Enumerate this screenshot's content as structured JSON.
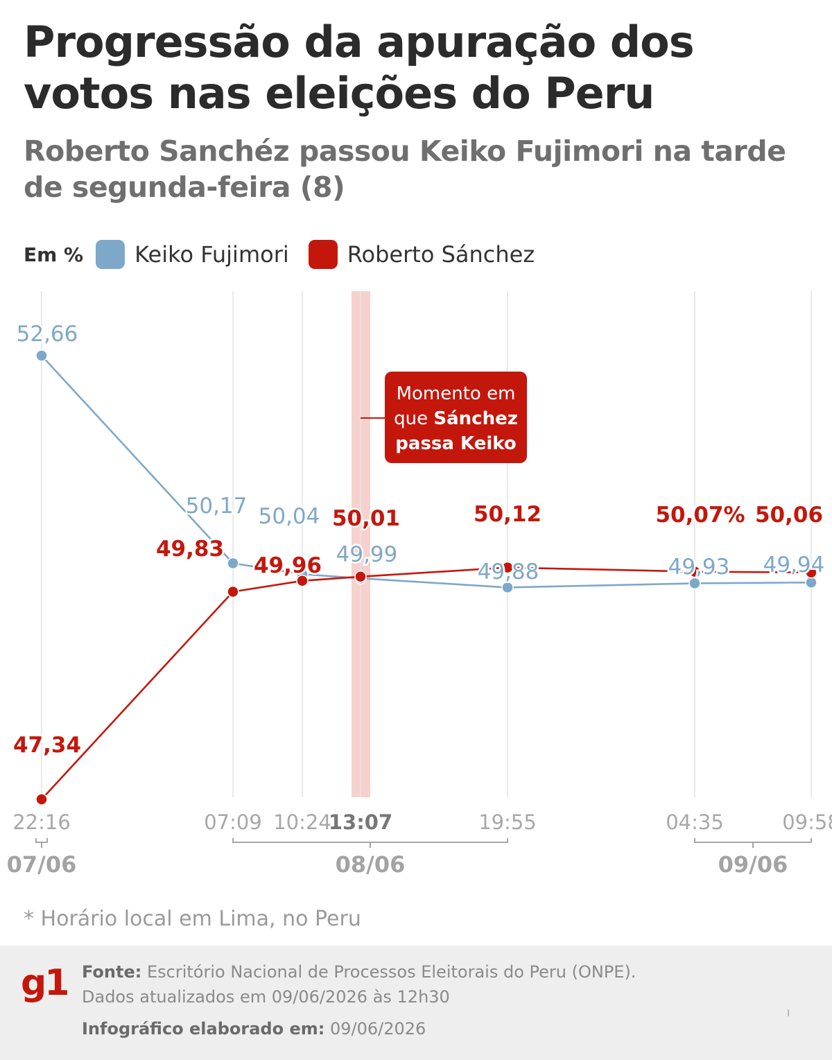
{
  "header": {
    "title": "Progressão da apuração dos votos nas eleições do Peru",
    "subtitle": "Roberto Sanchéz passou Keiko Fujimori na tarde de segunda-feira (8)"
  },
  "legend": {
    "unit": "Em %",
    "items": [
      {
        "label": "Keiko Fujimori",
        "color": "#7ea8c9"
      },
      {
        "label": "Roberto Sánchez",
        "color": "#c4170c"
      }
    ]
  },
  "chart_data": {
    "type": "line",
    "ylim": [
      47,
      53
    ],
    "x_ticks": [
      "22:16",
      "07:09",
      "10:24",
      "13:07",
      "19:55",
      "04:35",
      "09:58"
    ],
    "x_ticks_highlight": "13:07",
    "date_groups": [
      {
        "label": "07/06",
        "from": "22:16",
        "to": "22:16"
      },
      {
        "label": "08/06",
        "from": "07:09",
        "to": "19:55"
      },
      {
        "label": "09/06",
        "from": "04:35",
        "to": "09:58"
      }
    ],
    "series": [
      {
        "name": "Keiko Fujimori",
        "color": "#7ea8c9",
        "points": [
          {
            "x": "22:16",
            "y": 52.66,
            "label": "52,66"
          },
          {
            "x": "07:09",
            "y": 50.17,
            "label": "50,17"
          },
          {
            "x": "10:24",
            "y": 50.04,
            "label": "50,04"
          },
          {
            "x": "13:07",
            "y": 49.99,
            "label": "49,99"
          },
          {
            "x": "19:55",
            "y": 49.88,
            "label": "49,88"
          },
          {
            "x": "04:35",
            "y": 49.93,
            "label": "49,93"
          },
          {
            "x": "09:58",
            "y": 49.94,
            "label": "49,94"
          }
        ]
      },
      {
        "name": "Roberto Sánchez",
        "color": "#c4170c",
        "points": [
          {
            "x": "22:16",
            "y": 47.34,
            "label": "47,34"
          },
          {
            "x": "07:09",
            "y": 49.83,
            "label": "49,83"
          },
          {
            "x": "10:24",
            "y": 49.96,
            "label": "49,96"
          },
          {
            "x": "13:07",
            "y": 50.01,
            "label": "50,01"
          },
          {
            "x": "19:55",
            "y": 50.12,
            "label": "50,12"
          },
          {
            "x": "04:35",
            "y": 50.07,
            "label": "50,07%"
          },
          {
            "x": "09:58",
            "y": 50.06,
            "label": "50,06"
          }
        ]
      }
    ],
    "annotation": {
      "at": "13:07",
      "lines": [
        [
          {
            "t": "Momento em",
            "b": false
          }
        ],
        [
          {
            "t": "que ",
            "b": false
          },
          {
            "t": "Sánchez",
            "b": true
          }
        ],
        [
          {
            "t": "passa Keiko",
            "b": true
          }
        ]
      ]
    }
  },
  "footnote": "* Horário local em Lima, no Peru",
  "footer": {
    "logo": "g1",
    "source_label": "Fonte:",
    "source_text": " Escritório Nacional de Processos Eleitorais do Peru (ONPE).",
    "updated": "Dados atualizados em 09/06/2026 às 12h30",
    "made_label": "Infográfico elaborado em:",
    "made_date": " 09/06/2026"
  }
}
